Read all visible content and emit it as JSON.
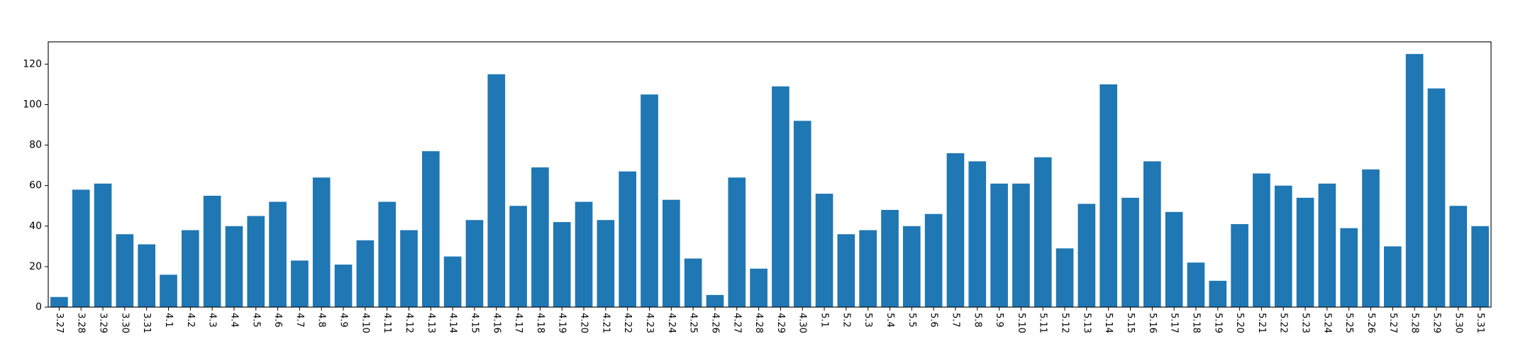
{
  "chart_data": {
    "type": "bar",
    "title": "",
    "xlabel": "",
    "ylabel": "",
    "ylim": [
      0,
      131
    ],
    "yticks": [
      0,
      20,
      40,
      60,
      80,
      100,
      120
    ],
    "grid": false,
    "legend": "none",
    "bar_color": "#1f77b4",
    "categories": [
      "3.27",
      "3.28",
      "3.29",
      "3.30",
      "3.31",
      "4.1",
      "4.2",
      "4.3",
      "4.4",
      "4.5",
      "4.6",
      "4.7",
      "4.8",
      "4.9",
      "4.10",
      "4.11",
      "4.12",
      "4.13",
      "4.14",
      "4.15",
      "4.16",
      "4.17",
      "4.18",
      "4.19",
      "4.20",
      "4.21",
      "4.22",
      "4.23",
      "4.24",
      "4.25",
      "4.26",
      "4.27",
      "4.28",
      "4.29",
      "4.30",
      "5.1",
      "5.2",
      "5.3",
      "5.4",
      "5.5",
      "5.6",
      "5.7",
      "5.8",
      "5.9",
      "5.10",
      "5.11",
      "5.12",
      "5.13",
      "5.14",
      "5.15",
      "5.16",
      "5.17",
      "5.18",
      "5.19",
      "5.20",
      "5.21",
      "5.22",
      "5.23",
      "5.24",
      "5.25",
      "5.26",
      "5.27",
      "5.28",
      "5.29",
      "5.30",
      "5.31"
    ],
    "values": [
      5,
      58,
      61,
      36,
      31,
      16,
      38,
      55,
      40,
      45,
      52,
      23,
      64,
      21,
      33,
      52,
      38,
      77,
      25,
      43,
      115,
      50,
      69,
      42,
      52,
      43,
      67,
      105,
      53,
      24,
      6,
      64,
      19,
      109,
      92,
      56,
      36,
      38,
      48,
      40,
      46,
      76,
      72,
      61,
      61,
      74,
      29,
      51,
      110,
      54,
      72,
      47,
      22,
      13,
      41,
      66,
      60,
      54,
      61,
      39,
      68,
      30,
      125,
      108,
      50,
      40
    ]
  }
}
